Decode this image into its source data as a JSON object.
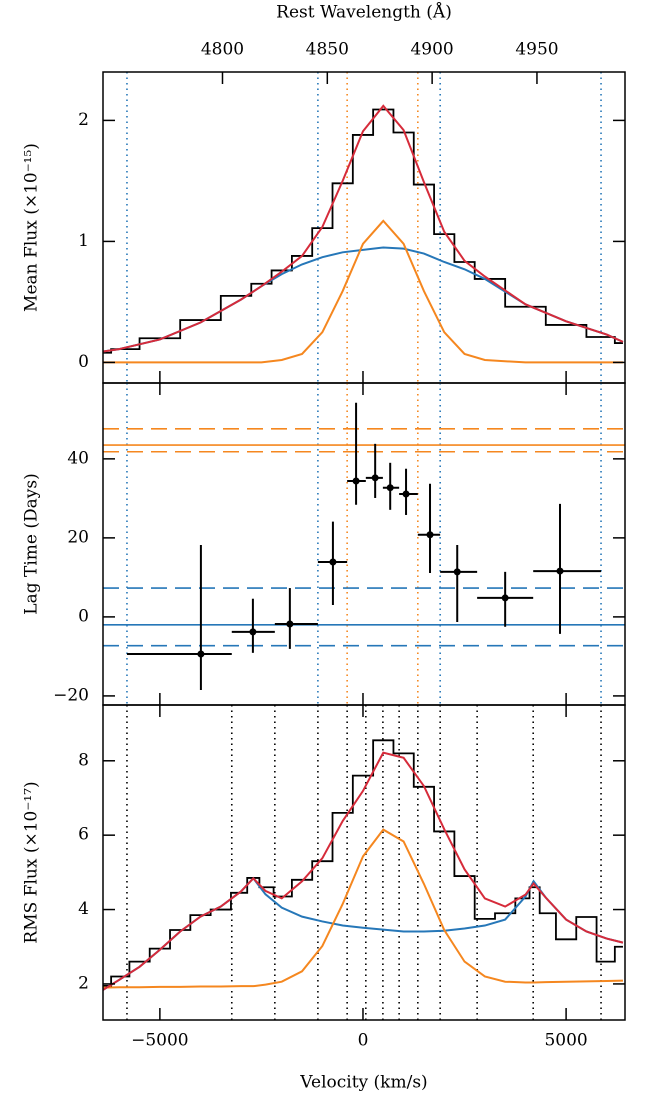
{
  "chart_data": [
    {
      "type": "line",
      "top_axis_label": "Rest Wavelength (Å)",
      "top_xlim": [
        4743,
        4992
      ],
      "top_xticks": [
        4800,
        4850,
        4900,
        4950
      ],
      "ylabel": "Mean Flux (×10⁻¹⁵)",
      "xlim": [
        -6400,
        6450
      ],
      "ylim": [
        -0.17,
        2.4
      ],
      "yticks": [
        0,
        1,
        2
      ],
      "x": [
        -6400,
        -6000,
        -5000,
        -4000,
        -3000,
        -2500,
        -2000,
        -1500,
        -1000,
        -500,
        0,
        500,
        1000,
        1500,
        2000,
        2500,
        3000,
        4000,
        5000,
        6000,
        6400
      ],
      "series": [
        {
          "color": "#000000",
          "style": "step",
          "values": [
            0.08,
            0.11,
            0.2,
            0.35,
            0.55,
            0.65,
            0.76,
            0.88,
            1.11,
            1.48,
            1.88,
            2.09,
            1.9,
            1.47,
            1.06,
            0.83,
            0.69,
            0.46,
            0.31,
            0.21,
            0.16
          ]
        },
        {
          "color": "#2677b8",
          "style": "solid",
          "values": [
            0.09,
            0.11,
            0.19,
            0.33,
            0.52,
            0.63,
            0.73,
            0.81,
            0.87,
            0.91,
            0.93,
            0.95,
            0.94,
            0.9,
            0.83,
            0.77,
            0.69,
            0.48,
            0.34,
            0.23,
            0.17
          ]
        },
        {
          "color": "#f5871f",
          "style": "solid",
          "values": [
            0,
            0,
            0,
            0,
            0,
            0,
            0.02,
            0.07,
            0.25,
            0.59,
            0.98,
            1.17,
            0.98,
            0.59,
            0.25,
            0.07,
            0.02,
            0,
            0,
            0,
            0
          ]
        },
        {
          "color": "#d62b3a",
          "style": "solid",
          "values": [
            0.09,
            0.11,
            0.19,
            0.33,
            0.52,
            0.63,
            0.75,
            0.88,
            1.12,
            1.5,
            1.91,
            2.12,
            1.92,
            1.49,
            1.08,
            0.84,
            0.71,
            0.48,
            0.34,
            0.23,
            0.17
          ]
        }
      ],
      "vlines": [
        {
          "color": "#2677b8",
          "x": [
            -5810,
            -1110,
            1900,
            5860
          ]
        },
        {
          "color": "#f5871f",
          "x": [
            -390,
            1350
          ]
        }
      ]
    },
    {
      "type": "errorbar",
      "ylabel": "Lag Time (Days)",
      "xlim": [
        -6400,
        6450
      ],
      "ylim": [
        -22.3,
        59.2
      ],
      "yticks": [
        {
          "value": -20,
          "label": "−20"
        },
        0,
        20,
        40
      ],
      "color": "#000000",
      "x": [
        -3990,
        -2710,
        -1800,
        -740,
        -170,
        300,
        670,
        1060,
        1650,
        2320,
        3500,
        4850
      ],
      "bin_edges": [
        -5810,
        -3230,
        -2170,
        -1110,
        -390,
        70,
        490,
        890,
        1350,
        1900,
        2810,
        4190,
        5860
      ],
      "values": [
        -9.4,
        -3.8,
        -1.8,
        13.9,
        34.4,
        35.2,
        32.7,
        31.1,
        20.8,
        11.4,
        4.8,
        11.6
      ],
      "y_low": [
        -18.5,
        -9.1,
        -8.1,
        3.0,
        28.4,
        30.1,
        27.1,
        25.8,
        11.1,
        -1.3,
        -2.5,
        -4.3
      ],
      "y_high": [
        18.2,
        4.6,
        7.3,
        24.1,
        54.2,
        43.8,
        39.0,
        37.5,
        33.7,
        18.2,
        11.4,
        28.6
      ],
      "hlines": [
        {
          "color": "#f5871f",
          "dashed": false,
          "y": 43.5
        },
        {
          "color": "#f5871f",
          "dashed": true,
          "y": 47.6
        },
        {
          "color": "#f5871f",
          "dashed": true,
          "y": 41.8
        },
        {
          "color": "#2677b8",
          "dashed": false,
          "y": -2.0
        },
        {
          "color": "#2677b8",
          "dashed": true,
          "y": 7.3
        },
        {
          "color": "#2677b8",
          "dashed": true,
          "y": -7.3
        }
      ],
      "vlines": [
        {
          "color": "#2677b8",
          "x": [
            -5810,
            -1110,
            1900,
            5860
          ]
        },
        {
          "color": "#f5871f",
          "x": [
            -390,
            1350
          ]
        }
      ]
    },
    {
      "type": "line",
      "ylabel": "RMS Flux (×10⁻¹⁷)",
      "xlabel": "Velocity (km/s)",
      "xlim": [
        -6400,
        6450
      ],
      "ylim": [
        1.03,
        9.5
      ],
      "yticks": [
        2,
        4,
        6,
        8
      ],
      "xticks": [
        {
          "value": -5000,
          "label": "−5000"
        },
        0,
        5000
      ],
      "x": [
        -6400,
        -6000,
        -5500,
        -5000,
        -4500,
        -4000,
        -3500,
        -3000,
        -2700,
        -2400,
        -2000,
        -1500,
        -1000,
        -500,
        0,
        500,
        1000,
        1500,
        2000,
        2500,
        3000,
        3500,
        4000,
        4200,
        4500,
        5000,
        5500,
        6000,
        6400
      ],
      "series": [
        {
          "color": "#000000",
          "style": "step",
          "values": [
            1.95,
            2.2,
            2.6,
            2.95,
            3.45,
            3.85,
            4.0,
            4.45,
            4.85,
            4.6,
            4.35,
            4.8,
            5.3,
            6.6,
            7.6,
            8.55,
            8.2,
            7.3,
            6.1,
            4.9,
            3.75,
            3.9,
            4.3,
            4.6,
            3.9,
            3.2,
            3.8,
            2.6,
            3.0
          ]
        },
        {
          "color": "#2677b8",
          "style": "solid",
          "values": [
            1.84,
            2.11,
            2.46,
            2.92,
            3.41,
            3.81,
            4.08,
            4.49,
            4.84,
            4.41,
            4.05,
            3.81,
            3.68,
            3.57,
            3.51,
            3.46,
            3.41,
            3.41,
            3.43,
            3.49,
            3.57,
            3.73,
            4.35,
            4.76,
            4.32,
            3.73,
            3.41,
            3.22,
            3.11
          ]
        },
        {
          "color": "#f5871f",
          "style": "solid",
          "values": [
            1.9,
            1.91,
            1.91,
            1.92,
            1.92,
            1.93,
            1.93,
            1.94,
            1.94,
            1.98,
            2.06,
            2.34,
            3.02,
            4.15,
            5.43,
            6.15,
            5.83,
            4.69,
            3.45,
            2.6,
            2.2,
            2.06,
            2.04,
            2.04,
            2.05,
            2.06,
            2.07,
            2.08,
            2.09
          ]
        },
        {
          "color": "#d62b3a",
          "style": "solid",
          "values": [
            1.84,
            2.11,
            2.46,
            2.92,
            3.41,
            3.81,
            4.08,
            4.49,
            4.84,
            4.5,
            4.3,
            4.76,
            5.38,
            6.38,
            7.19,
            8.22,
            8.08,
            7.32,
            6.16,
            5.08,
            4.3,
            4.08,
            4.4,
            4.7,
            4.32,
            3.73,
            3.41,
            3.22,
            3.11
          ]
        }
      ],
      "vlines": [
        {
          "color": "#000000",
          "x": [
            -5810,
            -3230,
            -2170,
            -1110,
            -390,
            70,
            490,
            890,
            1350,
            1900,
            2810,
            4190,
            5860
          ]
        }
      ]
    }
  ]
}
